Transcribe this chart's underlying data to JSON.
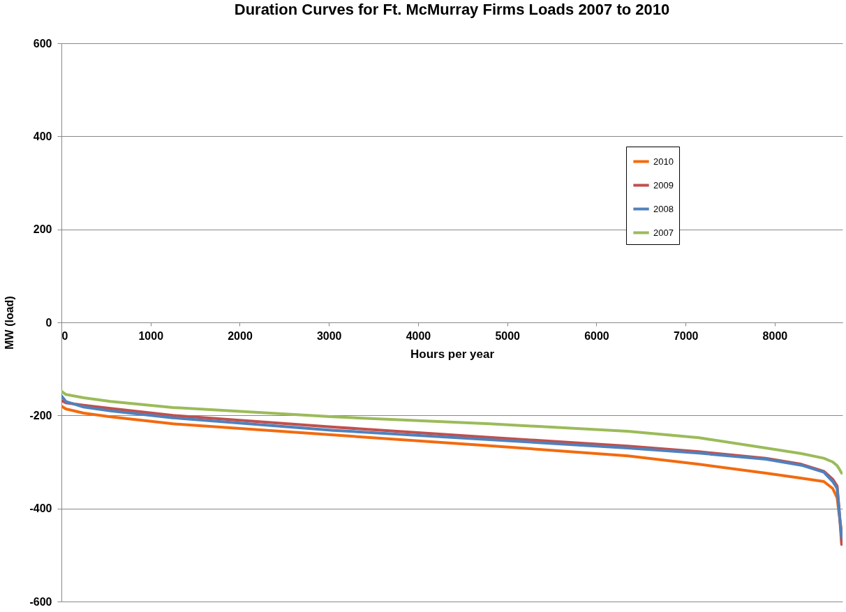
{
  "chart_data": {
    "type": "line",
    "title": "Duration Curves for Ft. McMurray Firms Loads 2007 to 2010",
    "xlabel": "Hours per year",
    "ylabel": "MW (load)",
    "x": [
      0,
      50,
      250,
      550,
      1250,
      3050,
      4800,
      6350,
      7150,
      7900,
      8300,
      8550,
      8650,
      8700,
      8720,
      8750
    ],
    "series": [
      {
        "name": "2010",
        "color": "#f26b0f",
        "values": [
          -180,
          -186,
          -195,
          -203,
          -218,
          -242,
          -265,
          -287,
          -305,
          -324,
          -335,
          -342,
          -357,
          -377,
          -410,
          -450
        ]
      },
      {
        "name": "2009",
        "color": "#c0504d",
        "values": [
          -168,
          -173,
          -178,
          -185,
          -200,
          -225,
          -247,
          -266,
          -278,
          -292,
          -305,
          -320,
          -337,
          -352,
          -397,
          -477
        ]
      },
      {
        "name": "2008",
        "color": "#4f81bd",
        "values": [
          -158,
          -170,
          -182,
          -190,
          -205,
          -232,
          -252,
          -270,
          -281,
          -294,
          -307,
          -322,
          -342,
          -357,
          -400,
          -462
        ]
      },
      {
        "name": "2007",
        "color": "#9bbb59",
        "values": [
          -148,
          -155,
          -162,
          -170,
          -183,
          -203,
          -218,
          -234,
          -248,
          -270,
          -282,
          -292,
          -300,
          -308,
          -314,
          -324
        ]
      }
    ],
    "xlim": [
      0,
      8760
    ],
    "xticks": [
      0,
      1000,
      2000,
      3000,
      4000,
      5000,
      6000,
      7000,
      8000
    ],
    "ylim": [
      -600,
      600
    ],
    "yticks": [
      -600,
      -400,
      -200,
      0,
      200,
      400,
      600
    ],
    "grid": "y",
    "legend": "top right",
    "marker": "none",
    "line_style": "solid"
  }
}
